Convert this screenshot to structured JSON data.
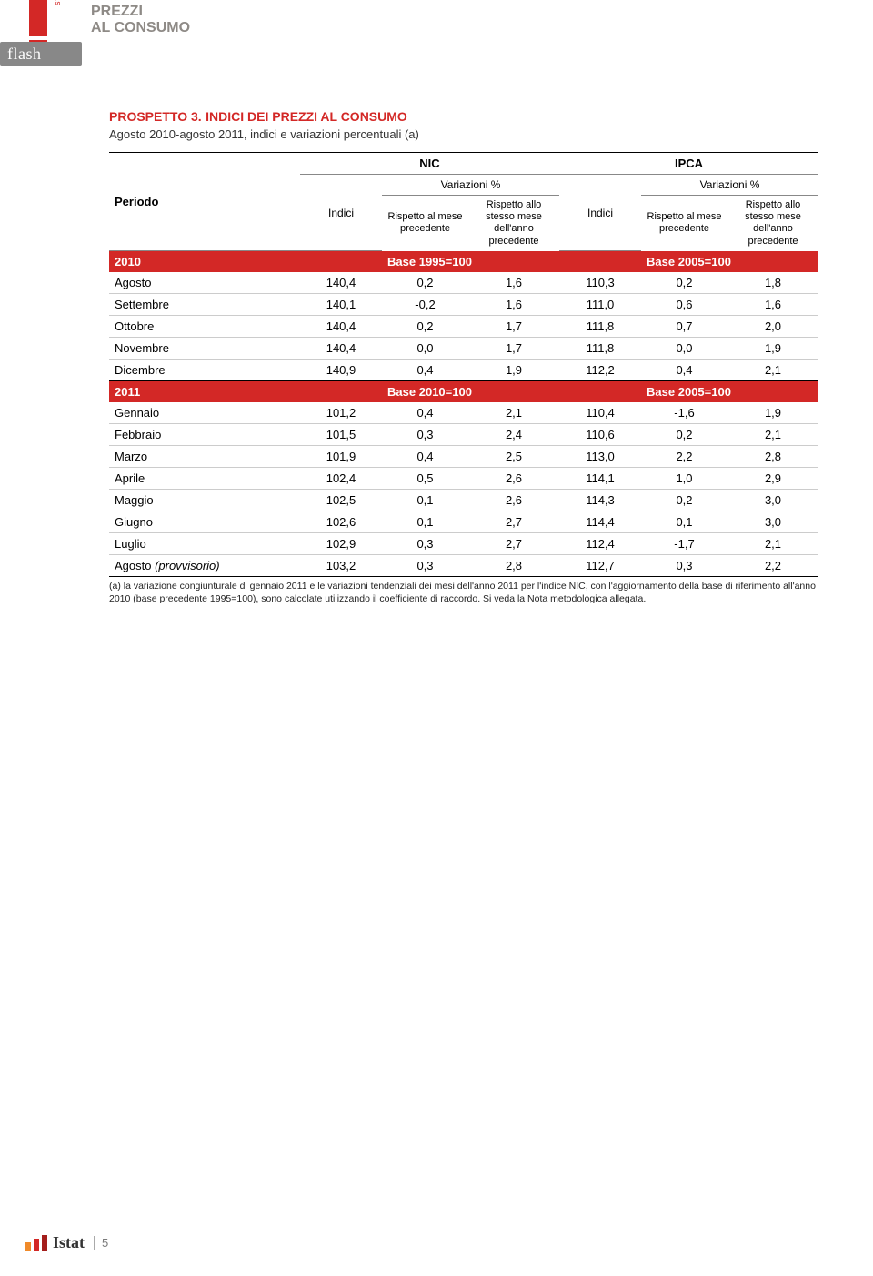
{
  "brand": {
    "flash": "flash",
    "statistiche": "statistiche",
    "title_line1": "PREZZI",
    "title_line2": "AL CONSUMO"
  },
  "table": {
    "title_prefix": "PROSPETTO 3.",
    "title_text": "INDICI DEI PREZZI AL CONSUMO",
    "subtitle": "Agosto 2010-agosto 2011, indici e variazioni percentuali (a)",
    "col_periodo": "Periodo",
    "group_nic": "NIC",
    "group_ipca": "IPCA",
    "variazioni": "Variazioni %",
    "col_indici": "Indici",
    "col_var_mese": "Rispetto al mese precedente",
    "col_var_anno": "Rispetto allo stesso mese dell'anno precedente",
    "band_2010": {
      "year": "2010",
      "base_nic": "Base 1995=100",
      "base_ipca": "Base 2005=100"
    },
    "rows_2010": [
      {
        "m": "Agosto",
        "a": "140,4",
        "b": "0,2",
        "c": "1,6",
        "d": "110,3",
        "e": "0,2",
        "f": "1,8"
      },
      {
        "m": "Settembre",
        "a": "140,1",
        "b": "-0,2",
        "c": "1,6",
        "d": "111,0",
        "e": "0,6",
        "f": "1,6"
      },
      {
        "m": "Ottobre",
        "a": "140,4",
        "b": "0,2",
        "c": "1,7",
        "d": "111,8",
        "e": "0,7",
        "f": "2,0"
      },
      {
        "m": "Novembre",
        "a": "140,4",
        "b": "0,0",
        "c": "1,7",
        "d": "111,8",
        "e": "0,0",
        "f": "1,9"
      },
      {
        "m": "Dicembre",
        "a": "140,9",
        "b": "0,4",
        "c": "1,9",
        "d": "112,2",
        "e": "0,4",
        "f": "2,1"
      }
    ],
    "band_2011": {
      "year": "2011",
      "base_nic": "Base 2010=100",
      "base_ipca": "Base 2005=100"
    },
    "rows_2011": [
      {
        "m": "Gennaio",
        "a": "101,2",
        "b": "0,4",
        "c": "2,1",
        "d": "110,4",
        "e": "-1,6",
        "f": "1,9"
      },
      {
        "m": "Febbraio",
        "a": "101,5",
        "b": "0,3",
        "c": "2,4",
        "d": "110,6",
        "e": "0,2",
        "f": "2,1"
      },
      {
        "m": "Marzo",
        "a": "101,9",
        "b": "0,4",
        "c": "2,5",
        "d": "113,0",
        "e": "2,2",
        "f": "2,8"
      },
      {
        "m": "Aprile",
        "a": "102,4",
        "b": "0,5",
        "c": "2,6",
        "d": "114,1",
        "e": "1,0",
        "f": "2,9"
      },
      {
        "m": "Maggio",
        "a": "102,5",
        "b": "0,1",
        "c": "2,6",
        "d": "114,3",
        "e": "0,2",
        "f": "3,0"
      },
      {
        "m": "Giugno",
        "a": "102,6",
        "b": "0,1",
        "c": "2,7",
        "d": "114,4",
        "e": "0,1",
        "f": "3,0"
      },
      {
        "m": "Luglio",
        "a": "102,9",
        "b": "0,3",
        "c": "2,7",
        "d": "112,4",
        "e": "-1,7",
        "f": "2,1"
      },
      {
        "m": "Agosto (provvisorio)",
        "a": "103,2",
        "b": "0,3",
        "c": "2,8",
        "d": "112,7",
        "e": "0,3",
        "f": "2,2",
        "ital": true
      }
    ],
    "footnote": "(a) la variazione congiunturale di gennaio 2011 e le variazioni tendenziali dei mesi dell'anno 2011 per l'indice NIC, con l'aggiornamento della base di riferimento all'anno 2010 (base precedente 1995=100), sono calcolate utilizzando il coefficiente di raccordo. Si veda la Nota metodologica allegata."
  },
  "footer": {
    "istat": "Istat",
    "page": "5"
  },
  "colors": {
    "red": "#d32826",
    "grey_text": "#8e8a86",
    "border": "#cccccc"
  }
}
